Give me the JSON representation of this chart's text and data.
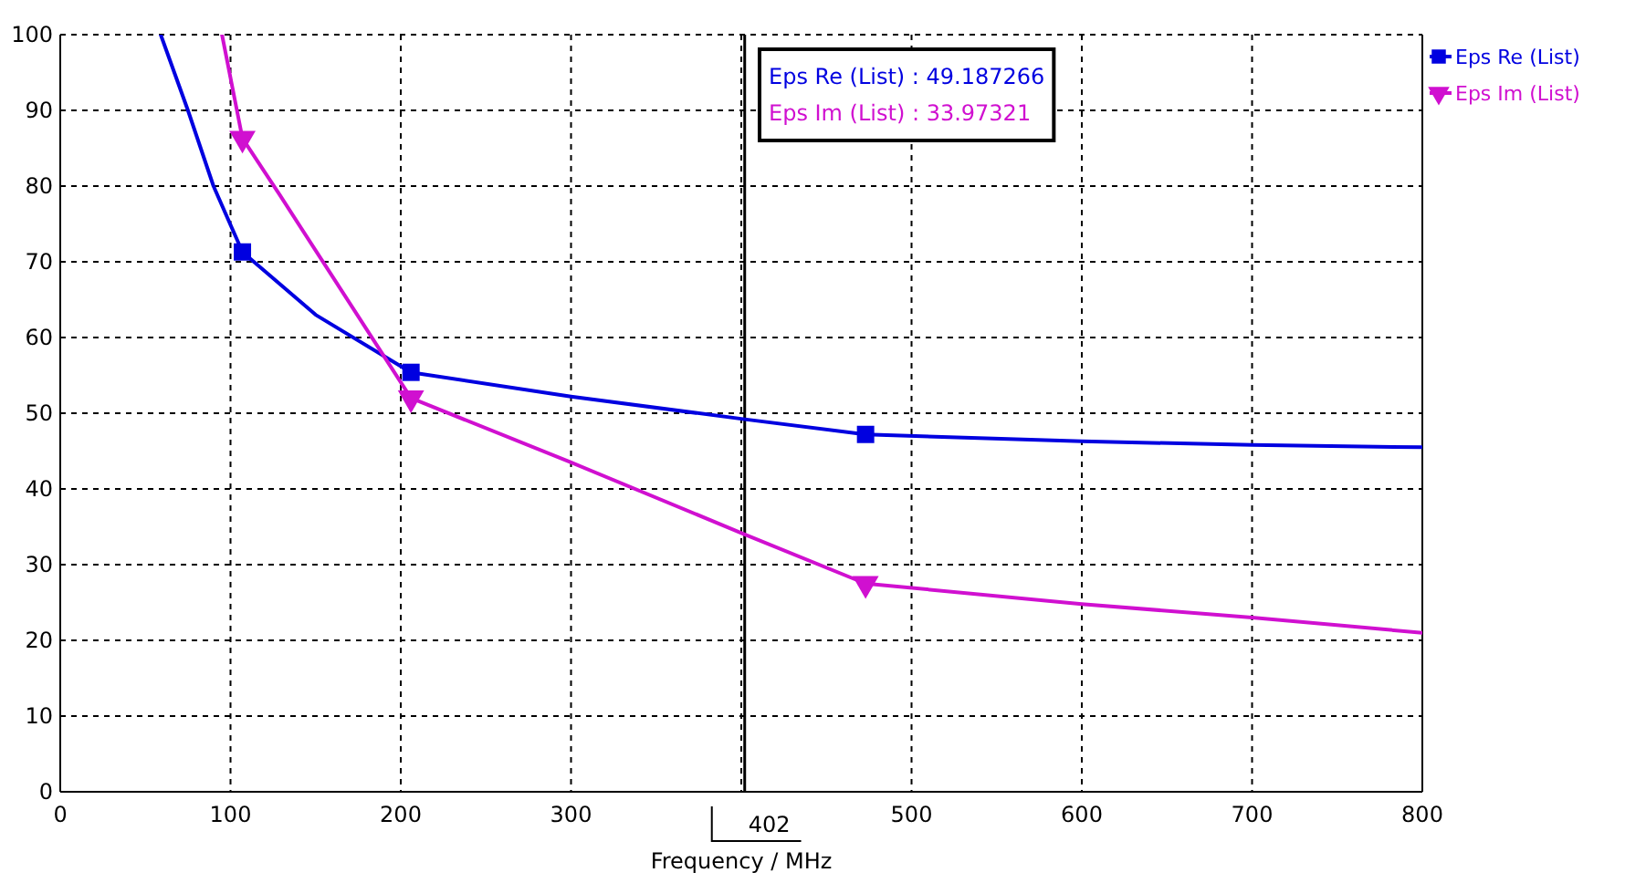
{
  "chart_data": {
    "type": "line",
    "xlabel": "Frequency / MHz",
    "xlim": [
      0,
      800
    ],
    "xticks": [
      0,
      100,
      200,
      300,
      {
        "value": 400,
        "label": null
      },
      500,
      600,
      700,
      800
    ],
    "ylim": [
      0,
      100
    ],
    "yticks": [
      0,
      10,
      20,
      30,
      40,
      50,
      60,
      70,
      80,
      90,
      100
    ],
    "grid": true,
    "legend": "top right",
    "series": [
      {
        "color": "#0000e0",
        "marker": "none",
        "x": [
          59,
          75,
          90,
          107,
          150,
          206,
          300,
          402,
          473,
          600,
          700,
          800
        ],
        "values": [
          100,
          90,
          80,
          71.3,
          63,
          55.4,
          52.2,
          49.2,
          47.2,
          46.3,
          45.8,
          45.5
        ]
      },
      {
        "type": "scatter",
        "name": "Eps Re (List)",
        "color": "#0000e0",
        "marker": "square",
        "x": [
          107,
          206,
          473
        ],
        "values": [
          71.3,
          55.4,
          47.2
        ]
      },
      {
        "color": "#d010d0",
        "marker": "none",
        "x": [
          95,
          107,
          129,
          154,
          206,
          300,
          402,
          473,
          600,
          700,
          800
        ],
        "values": [
          100,
          86.3,
          78.8,
          70.1,
          52.0,
          43.5,
          34.0,
          27.5,
          24.8,
          23,
          21
        ]
      },
      {
        "type": "scatter",
        "name": "Eps Im (List)",
        "color": "#d010d0",
        "marker": "triangle-down",
        "x": [
          107,
          206,
          473
        ],
        "values": [
          86.3,
          52.0,
          27.5
        ]
      }
    ],
    "ref_lines": [
      {
        "axis": "x",
        "value": 402,
        "label": "402",
        "color": "#000000"
      }
    ],
    "annotations": [
      "Eps Re (List) : 49.187266",
      "Eps Im (List) : 33.97321"
    ]
  }
}
